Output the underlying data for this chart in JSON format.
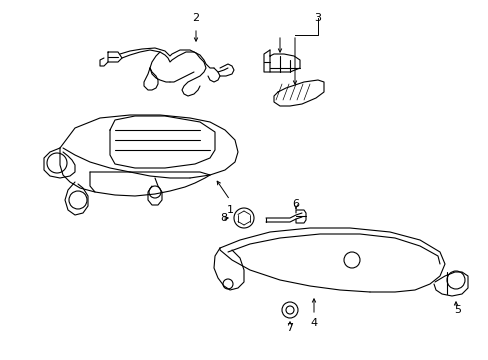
{
  "bg_color": "#ffffff",
  "line_color": "#000000",
  "lw": 0.8,
  "fig_width": 4.89,
  "fig_height": 3.6,
  "dpi": 100
}
